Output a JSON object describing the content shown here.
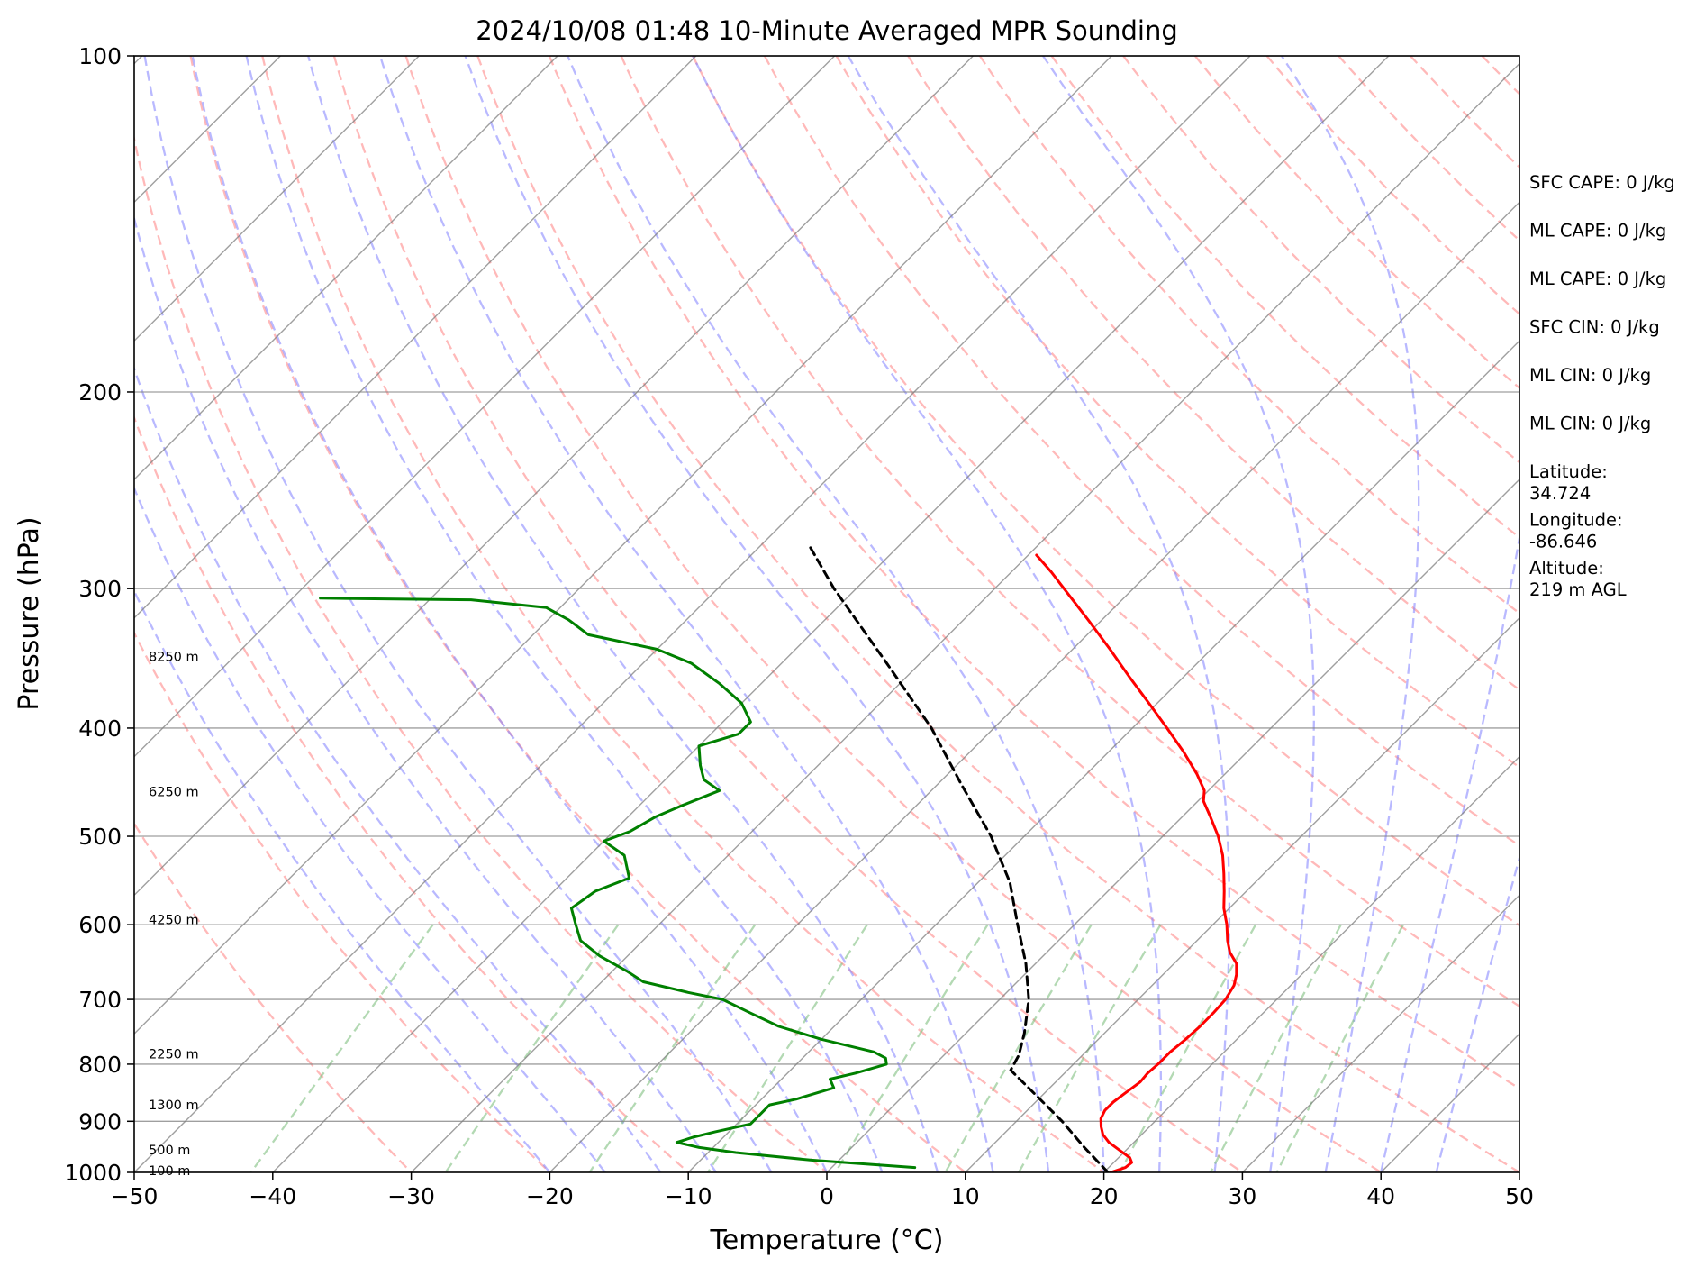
{
  "chart_data": {
    "type": "skew-t",
    "title": "2024/10/08 01:48 10-Minute Averaged MPR Sounding",
    "xlabel": "Temperature (°C)",
    "ylabel": "Pressure (hPa)",
    "xlim": [
      -50,
      50
    ],
    "ylim": [
      1000,
      100
    ],
    "y_scale": "log",
    "x_ticks": [
      -50,
      -40,
      -30,
      -20,
      -10,
      0,
      10,
      20,
      30,
      40,
      50
    ],
    "x_tick_labels": [
      "−50",
      "−40",
      "−30",
      "−20",
      "−10",
      "0",
      "10",
      "20",
      "30",
      "40",
      "50"
    ],
    "y_ticks": [
      100,
      200,
      300,
      400,
      500,
      600,
      700,
      800,
      900,
      1000
    ],
    "y_tick_labels": [
      "100",
      "200",
      "300",
      "400",
      "500",
      "600",
      "700",
      "800",
      "900",
      "1000"
    ],
    "grid": true,
    "colors": {
      "temperature": "#ff0000",
      "dewpoint": "#008000",
      "parcel": "#000000",
      "isotherm": "#808080",
      "dry_adiabat": "#ff8080",
      "moist_adiabat": "#8080ff",
      "mixing_ratio": "#80c080"
    },
    "series": [
      {
        "key": "temperature",
        "points": [
          [
            1000,
            20.5
          ],
          [
            990,
            21.2
          ],
          [
            980,
            21.3
          ],
          [
            970,
            20.8
          ],
          [
            955,
            19.5
          ],
          [
            940,
            18.2
          ],
          [
            925,
            17.2
          ],
          [
            910,
            16.5
          ],
          [
            895,
            15.9
          ],
          [
            880,
            15.6
          ],
          [
            865,
            15.6
          ],
          [
            850,
            15.8
          ],
          [
            830,
            16.1
          ],
          [
            815,
            16.0
          ],
          [
            800,
            16.1
          ],
          [
            780,
            16.1
          ],
          [
            760,
            16.3
          ],
          [
            740,
            16.4
          ],
          [
            720,
            16.4
          ],
          [
            700,
            16.3
          ],
          [
            680,
            15.9
          ],
          [
            665,
            15.3
          ],
          [
            650,
            14.5
          ],
          [
            635,
            13.2
          ],
          [
            620,
            12.2
          ],
          [
            600,
            11.0
          ],
          [
            580,
            9.6
          ],
          [
            560,
            8.4
          ],
          [
            540,
            7.1
          ],
          [
            520,
            5.7
          ],
          [
            500,
            4.0
          ],
          [
            480,
            2.0
          ],
          [
            465,
            0.4
          ],
          [
            455,
            -0.3
          ],
          [
            440,
            -2.0
          ],
          [
            420,
            -4.6
          ],
          [
            400,
            -7.5
          ],
          [
            380,
            -10.6
          ],
          [
            360,
            -13.9
          ],
          [
            340,
            -17.3
          ],
          [
            320,
            -21.0
          ],
          [
            300,
            -25.0
          ],
          [
            290,
            -27.1
          ],
          [
            280,
            -29.4
          ]
        ]
      },
      {
        "key": "dewpoint",
        "points": [
          [
            990,
            6.0
          ],
          [
            975,
            -2.0
          ],
          [
            960,
            -8.0
          ],
          [
            950,
            -11.0
          ],
          [
            940,
            -13.0
          ],
          [
            930,
            -12.2
          ],
          [
            920,
            -11.0
          ],
          [
            905,
            -9.0
          ],
          [
            890,
            -9.0
          ],
          [
            870,
            -9.0
          ],
          [
            860,
            -7.5
          ],
          [
            840,
            -5.6
          ],
          [
            825,
            -6.5
          ],
          [
            815,
            -5.1
          ],
          [
            800,
            -3.5
          ],
          [
            790,
            -4.0
          ],
          [
            780,
            -5.3
          ],
          [
            760,
            -10.0
          ],
          [
            740,
            -14.0
          ],
          [
            720,
            -17.0
          ],
          [
            700,
            -20.0
          ],
          [
            690,
            -23.0
          ],
          [
            675,
            -27.0
          ],
          [
            660,
            -29.0
          ],
          [
            640,
            -32.0
          ],
          [
            620,
            -34.5
          ],
          [
            600,
            -36.0
          ],
          [
            580,
            -37.5
          ],
          [
            560,
            -37.0
          ],
          [
            545,
            -35.5
          ],
          [
            520,
            -37.5
          ],
          [
            505,
            -40.0
          ],
          [
            495,
            -38.8
          ],
          [
            480,
            -38.0
          ],
          [
            470,
            -37.0
          ],
          [
            455,
            -35.3
          ],
          [
            445,
            -37.2
          ],
          [
            432,
            -38.5
          ],
          [
            415,
            -40.0
          ],
          [
            405,
            -38.0
          ],
          [
            395,
            -38.0
          ],
          [
            380,
            -40.0
          ],
          [
            365,
            -43.0
          ],
          [
            350,
            -46.5
          ],
          [
            340,
            -50.0
          ],
          [
            330,
            -56.0
          ],
          [
            320,
            -58.5
          ],
          [
            312,
            -61.0
          ],
          [
            307,
            -67.0
          ],
          [
            306,
            -78.0
          ]
        ]
      },
      {
        "key": "parcel",
        "dashed": true,
        "points": [
          [
            1000,
            20.3
          ],
          [
            950,
            16.8
          ],
          [
            900,
            13.3
          ],
          [
            850,
            9.3
          ],
          [
            810,
            5.9
          ],
          [
            785,
            5.4
          ],
          [
            750,
            4.2
          ],
          [
            700,
            2.1
          ],
          [
            650,
            -0.7
          ],
          [
            600,
            -4.1
          ],
          [
            550,
            -7.7
          ],
          [
            500,
            -12.4
          ],
          [
            450,
            -18.2
          ],
          [
            400,
            -24.5
          ],
          [
            350,
            -32.4
          ],
          [
            300,
            -41.6
          ],
          [
            275,
            -46.4
          ]
        ]
      }
    ],
    "height_labels": [
      {
        "text": "8250 m",
        "p": 345
      },
      {
        "text": "6250 m",
        "p": 456
      },
      {
        "text": "4250 m",
        "p": 594
      },
      {
        "text": "2250 m",
        "p": 783
      },
      {
        "text": "1300 m",
        "p": 870
      },
      {
        "text": "500 m",
        "p": 955
      },
      {
        "text": "100 m",
        "p": 996
      }
    ],
    "annotations": [
      "SFC CAPE: 0 J/kg",
      "ML CAPE: 0 J/kg",
      "ML CAPE: 0 J/kg",
      "SFC CIN: 0 J/kg",
      "ML CIN: 0 J/kg",
      "ML CIN: 0 J/kg",
      "Latitude:\n34.724",
      "Longitude:\n-86.646",
      "Altitude:\n219 m AGL"
    ]
  }
}
